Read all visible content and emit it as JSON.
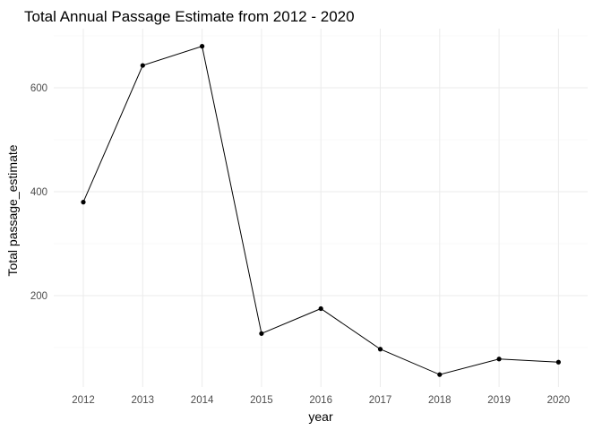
{
  "chart_data": {
    "type": "line",
    "title": "Total Annual Passage Estimate from 2012 - 2020",
    "xlabel": "year",
    "ylabel": "Total passage_estimate",
    "x": [
      "2012",
      "2013",
      "2014",
      "2015",
      "2016",
      "2017",
      "2018",
      "2019",
      "2020"
    ],
    "series": [
      {
        "values": [
          380,
          643,
          680,
          127,
          175,
          97,
          48,
          78,
          72
        ]
      }
    ],
    "ylim": [
      25,
      700
    ],
    "yticks": [
      200,
      400,
      600
    ],
    "ytick_labels": [
      "200",
      "400",
      "600"
    ],
    "grid": true,
    "legend": "none",
    "colors": {
      "line": "#000000",
      "point": "#000000",
      "grid": "#ebebeb",
      "tick_text": "#4d4d4d"
    }
  }
}
